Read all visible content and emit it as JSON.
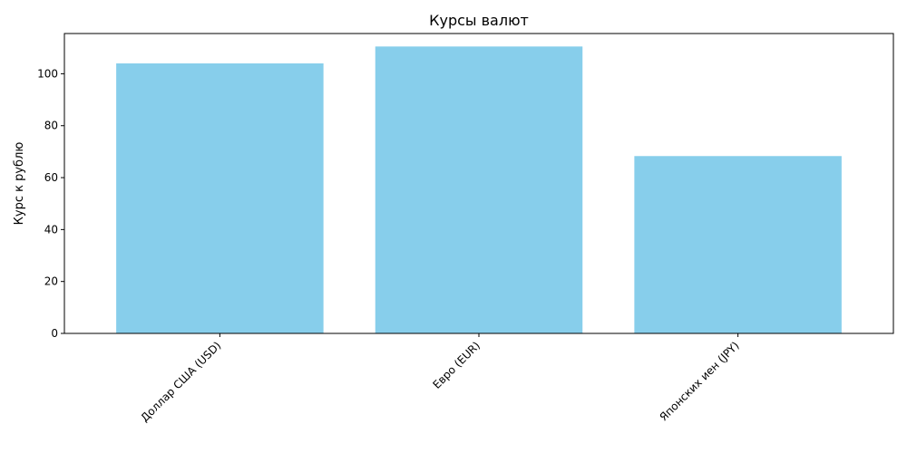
{
  "chart_data": {
    "type": "bar",
    "title": "Курсы валют",
    "xlabel": "",
    "ylabel": "Курс к рублю",
    "categories": [
      "Доллар США (USD)",
      "Евро (EUR)",
      "Японских иен (JPY)"
    ],
    "values": [
      104,
      110.5,
      68.3
    ],
    "ylim": [
      0,
      115.5
    ],
    "yticks": [
      0,
      20,
      40,
      60,
      80,
      100
    ],
    "grid": false,
    "legend": "none",
    "bar_color": "#87CEEB",
    "xtick_rotation": 45
  }
}
